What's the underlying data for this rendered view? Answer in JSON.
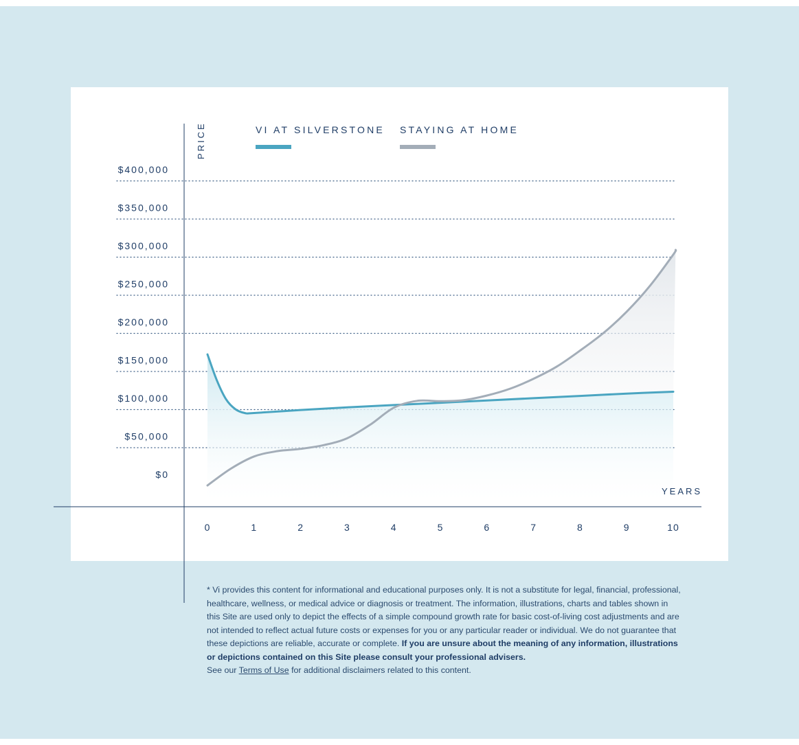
{
  "colors": {
    "background": "#d4e8ef",
    "card": "#ffffff",
    "text": "#1f3d66",
    "vi_series": "#4aa5c1",
    "home_series": "#a3adb8"
  },
  "chart_data": {
    "type": "line",
    "ylabel": "PRICE",
    "xlabel": "YEARS",
    "x": [
      0,
      1,
      2,
      3,
      4,
      5,
      6,
      7,
      8,
      9,
      10
    ],
    "ylim": [
      0,
      400000
    ],
    "xlim": [
      0,
      10
    ],
    "y_ticks": [
      0,
      50000,
      100000,
      150000,
      200000,
      250000,
      300000,
      350000,
      400000
    ],
    "y_tick_labels": [
      "$0",
      "$50,000",
      "$100,000",
      "$150,000",
      "$200,000",
      "$250,000",
      "$300,000",
      "$350,000",
      "$400,000"
    ],
    "x_tick_labels": [
      "0",
      "1",
      "2",
      "3",
      "4",
      "5",
      "6",
      "7",
      "8",
      "9",
      "10"
    ],
    "grid": "dotted horizontal",
    "legend_position": "top",
    "series": [
      {
        "name": "VI AT SILVERSTONE",
        "color": "#4aa5c1",
        "fill": "area",
        "points": [
          [
            0,
            172000
          ],
          [
            0.2,
            138000
          ],
          [
            0.4,
            113000
          ],
          [
            0.6,
            100000
          ],
          [
            0.8,
            95000
          ],
          [
            1,
            95000
          ],
          [
            2,
            99000
          ],
          [
            3,
            102500
          ],
          [
            4,
            105500
          ],
          [
            5,
            108500
          ],
          [
            6,
            111500
          ],
          [
            7,
            114500
          ],
          [
            8,
            117500
          ],
          [
            9,
            120500
          ],
          [
            10,
            123000
          ]
        ]
      },
      {
        "name": "STAYING AT HOME",
        "color": "#a3adb8",
        "fill": "area",
        "points": [
          [
            0,
            0
          ],
          [
            0.5,
            22000
          ],
          [
            1,
            38000
          ],
          [
            1.5,
            45000
          ],
          [
            2,
            48000
          ],
          [
            2.5,
            53000
          ],
          [
            3,
            62000
          ],
          [
            3.5,
            80000
          ],
          [
            4,
            102000
          ],
          [
            4.5,
            111000
          ],
          [
            5,
            110500
          ],
          [
            5.5,
            112000
          ],
          [
            6,
            118000
          ],
          [
            6.5,
            127000
          ],
          [
            7,
            140000
          ],
          [
            7.5,
            156000
          ],
          [
            8,
            177000
          ],
          [
            8.5,
            200000
          ],
          [
            9,
            228000
          ],
          [
            9.5,
            262000
          ],
          [
            10,
            303000
          ],
          [
            10.05,
            309000
          ]
        ]
      }
    ]
  },
  "disclaimer": {
    "text": "* Vi provides this content for informational and educational purposes only. It is not a substitute for legal, financial, professional, healthcare, wellness, or medical advice or diagnosis or treatment. The information, illustrations, charts and tables shown in this Site are used only to depict the effects of a simple compound growth rate for basic cost-of-living cost adjustments and are not intended to reflect actual future costs or expenses for you or any particular reader or individual. We do not guarantee that these depictions are reliable, accurate or complete.",
    "bold_text": "If you are unsure about the meaning of any information, illustrations or depictions contained on this Site please consult your professional advisers.",
    "see_our": "See our",
    "terms_link": "Terms of Use",
    "after_link": "for additional disclaimers related to this content."
  }
}
